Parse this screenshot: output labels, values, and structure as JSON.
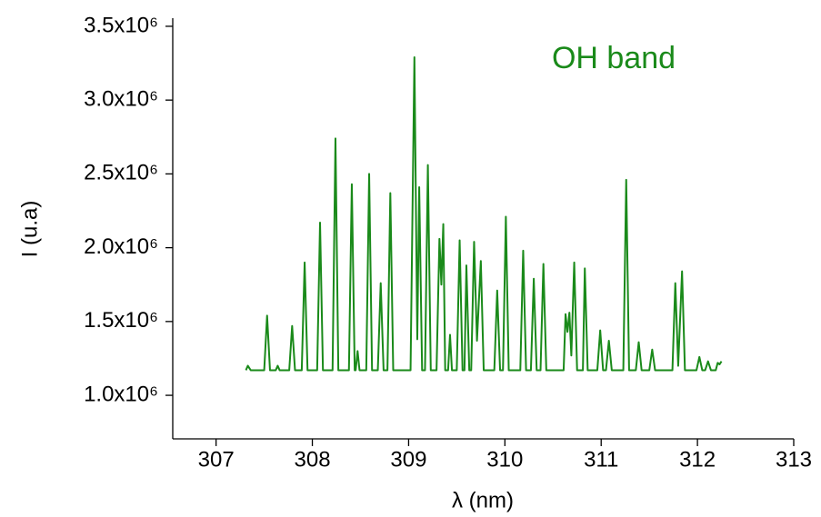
{
  "chart_data": {
    "type": "line",
    "annotation": "OH band",
    "x_label": "λ (nm)",
    "y_label": "I (u.a)",
    "xlim": [
      306.55,
      313
    ],
    "xticks": [
      307,
      308,
      309,
      310,
      311,
      312,
      313
    ],
    "ylim": [
      705000,
      3555000
    ],
    "yticks": [
      {
        "value": 1000000,
        "label": "1.0x10⁶"
      },
      {
        "value": 1500000,
        "label": "1.5x10⁶"
      },
      {
        "value": 2000000,
        "label": "2.0x10⁶"
      },
      {
        "value": 2500000,
        "label": "2.5x10⁶"
      },
      {
        "value": 3000000,
        "label": "3.0x10⁶"
      },
      {
        "value": 3500000,
        "label": "3.5x10⁶"
      }
    ],
    "color": "#1a8a1a",
    "x": [
      307.31,
      307.33,
      307.36,
      307.5,
      307.53,
      307.56,
      307.62,
      307.64,
      307.66,
      307.76,
      307.79,
      307.82,
      307.89,
      307.92,
      307.95,
      308.05,
      308.08,
      308.11,
      308.21,
      308.24,
      308.27,
      308.38,
      308.41,
      308.44,
      308.45,
      308.47,
      308.49,
      308.56,
      308.59,
      308.62,
      308.68,
      308.71,
      308.74,
      308.78,
      308.81,
      308.84,
      309.02,
      309.06,
      309.09,
      309.11,
      309.14,
      309.17,
      309.2,
      309.23,
      309.29,
      309.32,
      309.34,
      309.36,
      309.38,
      309.41,
      309.43,
      309.45,
      309.5,
      309.53,
      309.56,
      309.58,
      309.6,
      309.63,
      309.65,
      309.68,
      309.71,
      309.75,
      309.78,
      309.89,
      309.92,
      309.95,
      309.98,
      310.01,
      310.04,
      310.16,
      310.19,
      310.22,
      310.27,
      310.3,
      310.33,
      310.37,
      310.4,
      310.43,
      310.61,
      310.63,
      310.65,
      310.67,
      310.69,
      310.72,
      310.75,
      310.81,
      310.83,
      310.86,
      310.96,
      310.99,
      311.02,
      311.05,
      311.08,
      311.11,
      311.23,
      311.26,
      311.29,
      311.36,
      311.39,
      311.42,
      311.5,
      311.53,
      311.56,
      311.74,
      311.77,
      311.8,
      311.84,
      311.87,
      311.99,
      312.02,
      312.05,
      312.08,
      312.11,
      312.14,
      312.19,
      312.21,
      312.23,
      312.25
    ],
    "values": [
      1170000,
      1200000,
      1170000,
      1170000,
      1540000,
      1170000,
      1170000,
      1200000,
      1170000,
      1170000,
      1470000,
      1170000,
      1170000,
      1900000,
      1170000,
      1170000,
      2170000,
      1170000,
      1170000,
      2740000,
      1170000,
      1170000,
      2430000,
      1170000,
      1170000,
      1300000,
      1170000,
      1170000,
      2500000,
      1170000,
      1170000,
      1760000,
      1170000,
      1170000,
      2370000,
      1170000,
      1170000,
      3290000,
      1380000,
      2410000,
      1170000,
      1170000,
      2560000,
      1170000,
      1170000,
      2060000,
      1750000,
      2160000,
      1170000,
      1170000,
      1410000,
      1170000,
      1170000,
      2050000,
      1170000,
      1170000,
      1880000,
      1170000,
      1170000,
      2040000,
      1370000,
      1910000,
      1170000,
      1170000,
      1710000,
      1170000,
      1170000,
      2210000,
      1170000,
      1170000,
      1980000,
      1170000,
      1170000,
      1790000,
      1170000,
      1170000,
      1890000,
      1170000,
      1170000,
      1550000,
      1430000,
      1560000,
      1270000,
      1900000,
      1170000,
      1170000,
      1860000,
      1170000,
      1170000,
      1440000,
      1170000,
      1170000,
      1370000,
      1170000,
      1170000,
      2460000,
      1170000,
      1170000,
      1360000,
      1170000,
      1170000,
      1310000,
      1170000,
      1170000,
      1760000,
      1200000,
      1840000,
      1170000,
      1170000,
      1260000,
      1170000,
      1170000,
      1230000,
      1170000,
      1170000,
      1220000,
      1210000,
      1230000
    ]
  }
}
